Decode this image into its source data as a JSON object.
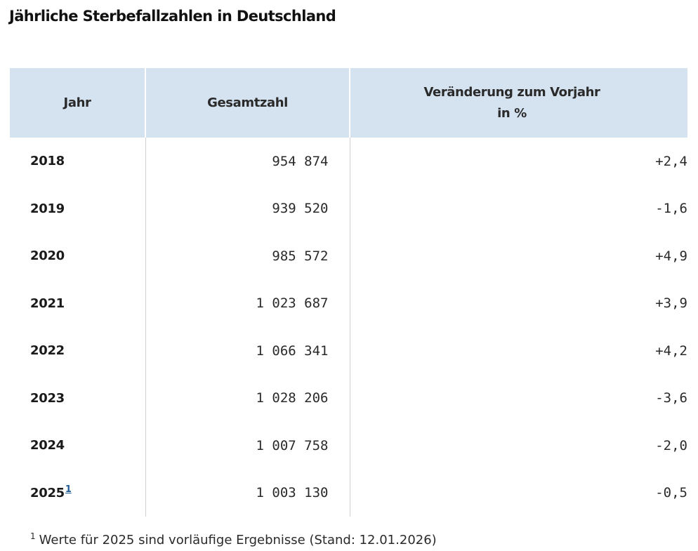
{
  "title": "Jährliche Sterbefallzahlen in Deutschland",
  "table": {
    "headers": {
      "year": "Jahr",
      "total": "Gesamtzahl",
      "change_line1": "Veränderung zum Vorjahr",
      "change_line2": "in %"
    },
    "rows": [
      {
        "year": "2018",
        "total": "954 874",
        "change": "+2,4"
      },
      {
        "year": "2019",
        "total": "939 520",
        "change": "-1,6"
      },
      {
        "year": "2020",
        "total": "985 572",
        "change": "+4,9"
      },
      {
        "year": "2021",
        "total": "1 023 687",
        "change": "+3,9"
      },
      {
        "year": "2022",
        "total": "1 066 341",
        "change": "+4,2"
      },
      {
        "year": "2023",
        "total": "1 028 206",
        "change": "-3,6"
      },
      {
        "year": "2024",
        "total": "1 007 758",
        "change": "-2,0"
      },
      {
        "year": "2025",
        "footnote_ref": "1",
        "total": "1 003 130",
        "change": "-0,5"
      }
    ]
  },
  "footnote": {
    "marker": "1",
    "text": "Werte für 2025 sind vorläufige Ergebnisse (Stand: 12.01.2026)"
  },
  "colors": {
    "header_background": "#d5e3f1",
    "footnote_link": "#1f5a96"
  }
}
